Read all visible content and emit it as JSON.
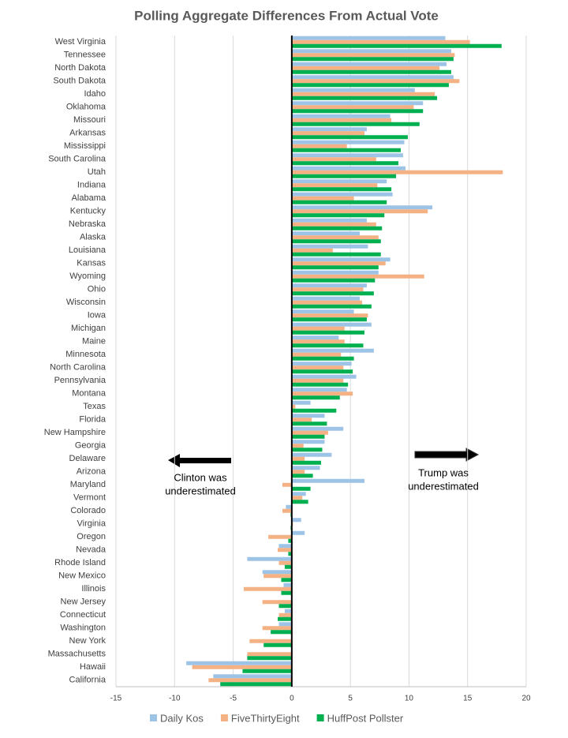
{
  "chart_data": {
    "type": "hbar",
    "title": "Polling Aggregate Differences From Actual Vote",
    "categories": [
      "West Virginia",
      "Tennessee",
      "North Dakota",
      "South Dakota",
      "Idaho",
      "Oklahoma",
      "Missouri",
      "Arkansas",
      "Mississippi",
      "South Carolina",
      "Utah",
      "Indiana",
      "Alabama",
      "Kentucky",
      "Nebraska",
      "Alaska",
      "Louisiana",
      "Kansas",
      "Wyoming",
      "Ohio",
      "Wisconsin",
      "Iowa",
      "Michigan",
      "Maine",
      "Minnesota",
      "North Carolina",
      "Pennsylvania",
      "Montana",
      "Texas",
      "Florida",
      "New Hampshire",
      "Georgia",
      "Delaware",
      "Arizona",
      "Maryland",
      "Vermont",
      "Colorado",
      "Virginia",
      "Oregon",
      "Nevada",
      "Rhode Island",
      "New Mexico",
      "Illinois",
      "New Jersey",
      "Connecticut",
      "Washington",
      "New York",
      "Massachusetts",
      "Hawaii",
      "California"
    ],
    "series": [
      {
        "name": "Daily Kos",
        "color": "#9dc3e6",
        "values": [
          13.1,
          13.6,
          13.2,
          13.8,
          10.5,
          11.2,
          8.4,
          6.4,
          9.6,
          9.5,
          9.7,
          8.1,
          8.6,
          12.0,
          6.4,
          5.8,
          6.5,
          8.4,
          7.4,
          6.4,
          5.8,
          5.3,
          6.8,
          4.0,
          7.0,
          5.1,
          5.5,
          4.7,
          1.6,
          2.8,
          4.4,
          2.8,
          3.4,
          2.4,
          6.2,
          1.2,
          -0.5,
          0.8,
          1.1,
          -1.1,
          -3.8,
          -2.5,
          -0.7,
          0,
          -0.6,
          -1.1,
          0,
          0,
          -9.0,
          -6.7
        ]
      },
      {
        "name": "FiveThirtyEight",
        "color": "#f4b183",
        "values": [
          15.2,
          13.9,
          12.6,
          14.3,
          12.2,
          10.4,
          8.5,
          6.2,
          4.7,
          7.2,
          18.0,
          7.3,
          5.3,
          11.6,
          7.2,
          7.4,
          3.5,
          8.0,
          11.3,
          6.1,
          6.0,
          6.5,
          4.5,
          4.5,
          4.2,
          4.4,
          4.4,
          5.2,
          0.3,
          1.7,
          3.1,
          1.0,
          1.1,
          1.1,
          -0.8,
          0.9,
          -0.8,
          0.1,
          -2.0,
          -1.2,
          -1.1,
          -2.4,
          -4.1,
          -2.5,
          -1.1,
          -2.5,
          -3.6,
          -3.8,
          -8.5,
          -7.1
        ]
      },
      {
        "name": "HuffPost Pollster",
        "color": "#00b050",
        "values": [
          17.9,
          13.8,
          13.6,
          13.4,
          12.4,
          11.2,
          10.9,
          9.9,
          9.3,
          9.1,
          8.9,
          8.5,
          8.1,
          7.9,
          7.7,
          7.6,
          7.6,
          7.4,
          7.1,
          7.0,
          6.8,
          6.4,
          6.2,
          6.1,
          5.3,
          5.2,
          4.8,
          4.1,
          3.8,
          3.0,
          2.8,
          2.6,
          2.5,
          1.8,
          1.6,
          1.4,
          -0.1,
          -0.1,
          -0.3,
          -0.3,
          -0.6,
          -0.9,
          -0.9,
          -1.1,
          -1.2,
          -1.8,
          -2.4,
          -3.8,
          -4.2,
          -6.1
        ]
      }
    ],
    "xlim": [
      -15,
      20
    ],
    "xticks": [
      -15,
      -10,
      -5,
      0,
      5,
      10,
      15,
      20
    ],
    "grid": true,
    "legend": "bottom",
    "annotations": [
      {
        "lines": [
          "Clinton was",
          "underestimated"
        ]
      },
      {
        "lines": [
          "Trump was",
          "underestimated"
        ]
      }
    ]
  }
}
